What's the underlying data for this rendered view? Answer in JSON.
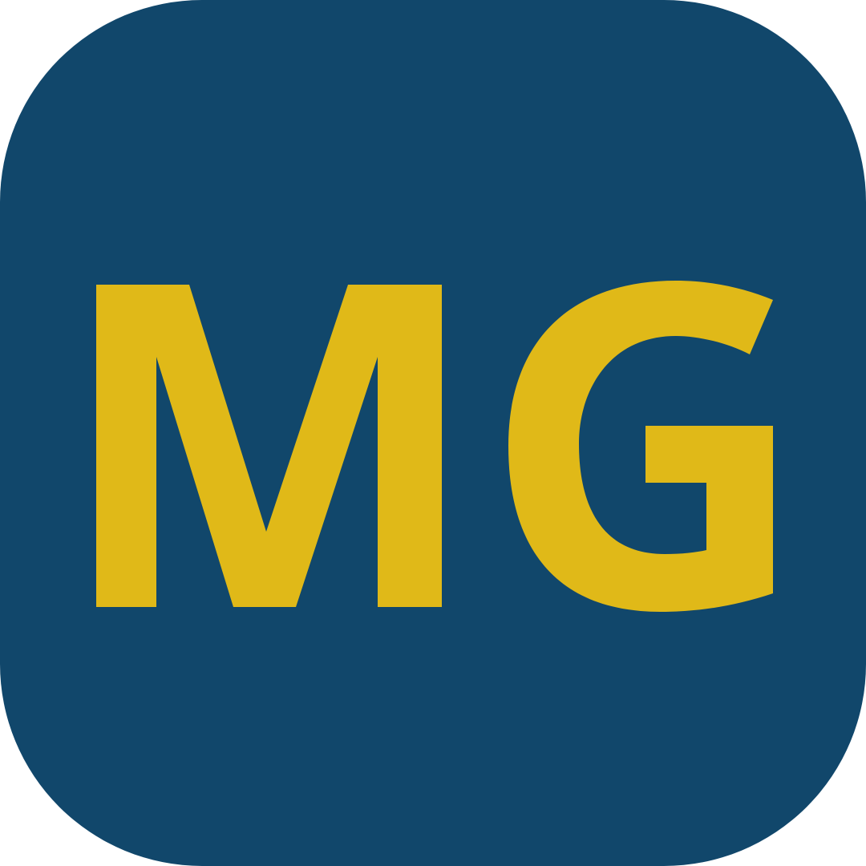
{
  "icon": {
    "monogram": "MG",
    "background_color": "#11476B",
    "letter_color": "#E0B918"
  }
}
